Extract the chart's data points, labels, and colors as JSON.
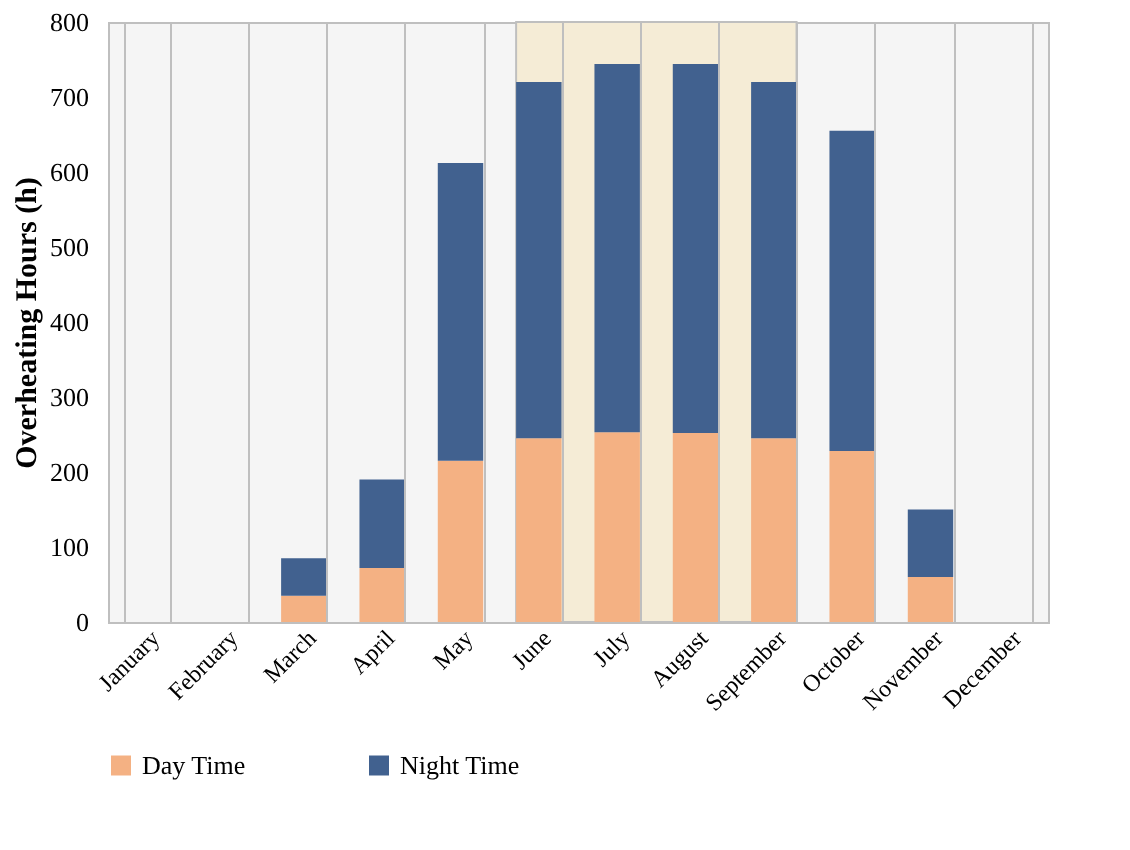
{
  "chart_data": {
    "type": "bar",
    "stacked": true,
    "ylabel": "Overheating Hours (h)",
    "categories": [
      "January",
      "February",
      "March",
      "April",
      "May",
      "June",
      "July",
      "August",
      "September",
      "October",
      "November",
      "December"
    ],
    "series": [
      {
        "name": "Day Time",
        "color": "#f4b183",
        "values": [
          0,
          0,
          35,
          72,
          215,
          245,
          253,
          252,
          245,
          228,
          60,
          0
        ]
      },
      {
        "name": "Night Time",
        "color": "#41618f",
        "values": [
          0,
          0,
          50,
          118,
          397,
          475,
          491,
          492,
          475,
          427,
          90,
          0
        ]
      }
    ],
    "ylim": [
      0,
      800
    ],
    "yticks": [
      0,
      100,
      200,
      300,
      400,
      500,
      600,
      700,
      800
    ],
    "bands": [
      {
        "axis": "x",
        "from": "June",
        "to": "September",
        "color": "#f5ecd6"
      }
    ],
    "grid": "x",
    "legend": "bottom"
  }
}
